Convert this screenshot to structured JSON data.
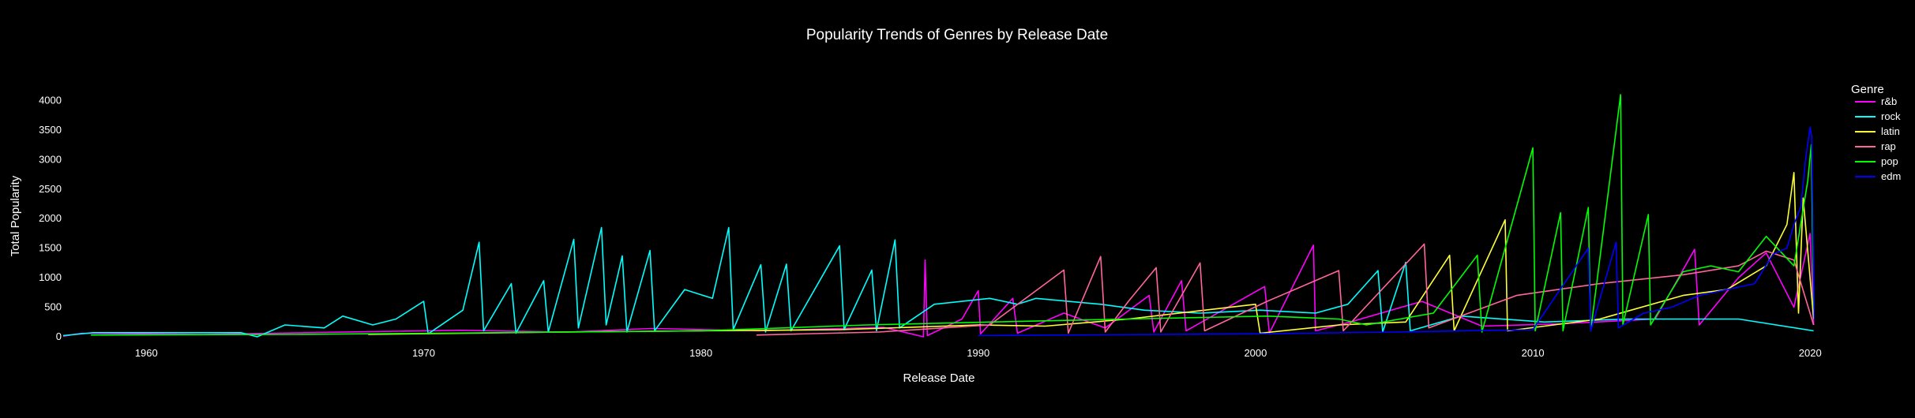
{
  "chart_data": {
    "type": "line",
    "title": "Popularity Trends of Genres by Release Date",
    "xlabel": "Release Date",
    "ylabel": "Total Popularity",
    "xlim": [
      "1957-01-01",
      "2020-03-01"
    ],
    "ylim": [
      0,
      4300
    ],
    "x_ticks": [
      "1960",
      "1970",
      "1980",
      "1990",
      "2000",
      "2010",
      "2020"
    ],
    "y_ticks": [
      0,
      500,
      1000,
      1500,
      2000,
      2500,
      3000,
      3500,
      4000
    ],
    "grid": false,
    "legend": {
      "title": "Genre",
      "placement": "right"
    },
    "background": "#000000",
    "series": [
      {
        "name": "r&b",
        "color": "#ff00ff",
        "points": [
          [
            "1957-01-01",
            10
          ],
          [
            "1957-09-01",
            60
          ],
          [
            "1962-01-01",
            40
          ],
          [
            "1968-06-01",
            90
          ],
          [
            "1971-05-01",
            110
          ],
          [
            "1975-03-01",
            80
          ],
          [
            "1978-04-01",
            140
          ],
          [
            "1982-02-01",
            100
          ],
          [
            "1986-08-01",
            160
          ],
          [
            "1988-01-10",
            0
          ],
          [
            "1988-02-01",
            1300
          ],
          [
            "1988-03-01",
            20
          ],
          [
            "1989-06-01",
            300
          ],
          [
            "1990-01-01",
            780
          ],
          [
            "1990-02-01",
            50
          ],
          [
            "1991-04-01",
            650
          ],
          [
            "1991-06-01",
            60
          ],
          [
            "1993-02-01",
            400
          ],
          [
            "1994-08-01",
            150
          ],
          [
            "1996-03-01",
            700
          ],
          [
            "1996-05-01",
            80
          ],
          [
            "1997-05-01",
            950
          ],
          [
            "1997-07-01",
            100
          ],
          [
            "2000-05-01",
            850
          ],
          [
            "2000-07-01",
            60
          ],
          [
            "2002-02-01",
            1550
          ],
          [
            "2002-03-01",
            100
          ],
          [
            "2003-06-01",
            250
          ],
          [
            "2006-01-01",
            600
          ],
          [
            "2008-03-01",
            180
          ],
          [
            "2011-01-01",
            220
          ],
          [
            "2014-06-01",
            300
          ],
          [
            "2015-11-01",
            1480
          ],
          [
            "2016-01-01",
            200
          ],
          [
            "2017-06-01",
            1000
          ],
          [
            "2018-06-01",
            1420
          ],
          [
            "2019-06-01",
            500
          ],
          [
            "2020-01-01",
            1750
          ],
          [
            "2020-02-15",
            200
          ]
        ]
      },
      {
        "name": "rock",
        "color": "#00ffff",
        "points": [
          [
            "1957-01-01",
            20
          ],
          [
            "1958-02-01",
            70
          ],
          [
            "1963-06-01",
            70
          ],
          [
            "1964-01-01",
            0
          ],
          [
            "1965-01-01",
            200
          ],
          [
            "1966-06-01",
            150
          ],
          [
            "1967-02-01",
            350
          ],
          [
            "1968-03-01",
            200
          ],
          [
            "1969-01-01",
            300
          ],
          [
            "1970-01-01",
            600
          ],
          [
            "1970-03-01",
            50
          ],
          [
            "1971-06-01",
            450
          ],
          [
            "1972-01-01",
            1600
          ],
          [
            "1972-03-01",
            100
          ],
          [
            "1973-03-01",
            900
          ],
          [
            "1973-05-01",
            60
          ],
          [
            "1974-05-01",
            950
          ],
          [
            "1974-07-01",
            80
          ],
          [
            "1975-06-01",
            1650
          ],
          [
            "1975-08-01",
            150
          ],
          [
            "1976-06-01",
            1850
          ],
          [
            "1976-08-01",
            200
          ],
          [
            "1977-03-01",
            1370
          ],
          [
            "1977-05-01",
            80
          ],
          [
            "1978-03-01",
            1460
          ],
          [
            "1978-05-01",
            100
          ],
          [
            "1979-06-01",
            800
          ],
          [
            "1980-06-01",
            650
          ],
          [
            "1981-01-01",
            1850
          ],
          [
            "1981-03-01",
            120
          ],
          [
            "1982-03-01",
            1220
          ],
          [
            "1982-05-01",
            80
          ],
          [
            "1983-02-01",
            1230
          ],
          [
            "1983-04-01",
            100
          ],
          [
            "1985-01-01",
            1540
          ],
          [
            "1985-03-01",
            120
          ],
          [
            "1986-03-01",
            1130
          ],
          [
            "1986-05-01",
            100
          ],
          [
            "1987-01-01",
            1640
          ],
          [
            "1987-03-01",
            150
          ],
          [
            "1988-06-01",
            550
          ],
          [
            "1990-06-01",
            650
          ],
          [
            "1991-06-01",
            550
          ],
          [
            "1992-02-01",
            650
          ],
          [
            "1994-06-01",
            550
          ],
          [
            "1996-01-01",
            450
          ],
          [
            "1998-01-01",
            400
          ],
          [
            "2000-03-01",
            450
          ],
          [
            "2002-03-01",
            400
          ],
          [
            "2003-05-01",
            550
          ],
          [
            "2004-06-01",
            1120
          ],
          [
            "2004-08-01",
            80
          ],
          [
            "2005-06-01",
            1260
          ],
          [
            "2005-08-01",
            100
          ],
          [
            "2007-06-01",
            350
          ],
          [
            "2010-06-01",
            250
          ],
          [
            "2013-06-01",
            300
          ],
          [
            "2017-06-01",
            300
          ],
          [
            "2020-02-15",
            100
          ]
        ]
      },
      {
        "name": "latin",
        "color": "#ffff33",
        "points": [
          [
            "1968-01-01",
            40
          ],
          [
            "1975-01-01",
            80
          ],
          [
            "1985-01-01",
            120
          ],
          [
            "1990-01-01",
            200
          ],
          [
            "1992-06-01",
            180
          ],
          [
            "1995-06-01",
            300
          ],
          [
            "2000-01-01",
            550
          ],
          [
            "2000-03-01",
            60
          ],
          [
            "2003-01-01",
            200
          ],
          [
            "2005-06-01",
            250
          ],
          [
            "2007-01-01",
            1380
          ],
          [
            "2007-03-01",
            100
          ],
          [
            "2009-01-01",
            1980
          ],
          [
            "2009-02-01",
            100
          ],
          [
            "2012-06-01",
            300
          ],
          [
            "2015-06-01",
            700
          ],
          [
            "2017-01-01",
            800
          ],
          [
            "2018-06-01",
            1200
          ],
          [
            "2019-03-01",
            1900
          ],
          [
            "2019-06-01",
            2780
          ],
          [
            "2019-08-01",
            400
          ],
          [
            "2019-10-01",
            2350
          ],
          [
            "2020-02-15",
            300
          ]
        ]
      },
      {
        "name": "rap",
        "color": "#ff6699",
        "points": [
          [
            "1982-01-01",
            30
          ],
          [
            "1986-06-01",
            80
          ],
          [
            "1990-06-01",
            200
          ],
          [
            "1993-02-01",
            1130
          ],
          [
            "1993-04-01",
            60
          ],
          [
            "1994-06-01",
            1360
          ],
          [
            "1994-08-01",
            80
          ],
          [
            "1995-06-01",
            600
          ],
          [
            "1996-06-01",
            1170
          ],
          [
            "1996-08-01",
            80
          ],
          [
            "1998-01-01",
            1250
          ],
          [
            "1998-03-01",
            100
          ],
          [
            "2000-06-01",
            600
          ],
          [
            "2003-01-01",
            1120
          ],
          [
            "2003-03-01",
            100
          ],
          [
            "2006-02-01",
            1570
          ],
          [
            "2006-04-01",
            150
          ],
          [
            "2009-06-01",
            700
          ],
          [
            "2012-06-01",
            900
          ],
          [
            "2015-06-01",
            1050
          ],
          [
            "2017-06-01",
            1200
          ],
          [
            "2018-06-01",
            1450
          ],
          [
            "2019-06-01",
            1300
          ],
          [
            "2020-02-15",
            200
          ]
        ]
      },
      {
        "name": "pop",
        "color": "#00ff00",
        "points": [
          [
            "1958-01-01",
            30
          ],
          [
            "1965-06-01",
            40
          ],
          [
            "1970-06-01",
            60
          ],
          [
            "1980-01-01",
            100
          ],
          [
            "1986-01-01",
            200
          ],
          [
            "1990-06-01",
            250
          ],
          [
            "1995-06-01",
            300
          ],
          [
            "2000-06-01",
            350
          ],
          [
            "2003-01-01",
            300
          ],
          [
            "2004-01-01",
            200
          ],
          [
            "2006-06-01",
            400
          ],
          [
            "2008-01-01",
            1380
          ],
          [
            "2008-03-01",
            80
          ],
          [
            "2010-01-01",
            3200
          ],
          [
            "2010-02-01",
            100
          ],
          [
            "2011-01-01",
            2100
          ],
          [
            "2011-02-01",
            100
          ],
          [
            "2012-01-01",
            2190
          ],
          [
            "2012-02-01",
            100
          ],
          [
            "2013-03-01",
            4100
          ],
          [
            "2013-04-01",
            200
          ],
          [
            "2014-03-01",
            2070
          ],
          [
            "2014-04-01",
            200
          ],
          [
            "2015-06-01",
            1100
          ],
          [
            "2016-06-01",
            1200
          ],
          [
            "2017-06-01",
            1100
          ],
          [
            "2018-06-01",
            1700
          ],
          [
            "2019-06-01",
            1200
          ],
          [
            "2019-12-01",
            2650
          ],
          [
            "2020-01-15",
            3250
          ],
          [
            "2020-02-15",
            500
          ]
        ]
      },
      {
        "name": "edm",
        "color": "#0000ff",
        "points": [
          [
            "1990-01-01",
            20
          ],
          [
            "2000-01-01",
            50
          ],
          [
            "2005-01-01",
            80
          ],
          [
            "2010-01-01",
            120
          ],
          [
            "2012-01-01",
            1500
          ],
          [
            "2012-02-01",
            100
          ],
          [
            "2013-01-01",
            1600
          ],
          [
            "2013-02-01",
            150
          ],
          [
            "2014-01-01",
            400
          ],
          [
            "2015-01-01",
            500
          ],
          [
            "2016-01-01",
            700
          ],
          [
            "2017-01-01",
            800
          ],
          [
            "2018-01-01",
            900
          ],
          [
            "2018-09-01",
            1400
          ],
          [
            "2019-03-01",
            1500
          ],
          [
            "2019-06-01",
            1900
          ],
          [
            "2019-09-01",
            2200
          ],
          [
            "2019-11-01",
            3000
          ],
          [
            "2020-01-01",
            3550
          ],
          [
            "2020-01-20",
            3400
          ],
          [
            "2020-02-10",
            1600
          ],
          [
            "2020-02-25",
            300
          ]
        ]
      }
    ]
  }
}
